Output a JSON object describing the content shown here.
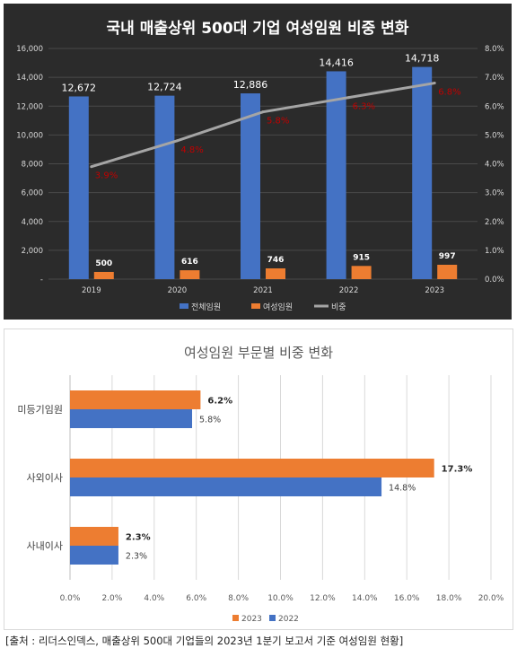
{
  "source_note": "[출처 : 리더스인덱스, 매출상위 500대 기업들의 2023년 1분기 보고서 기준 여성임원 현황]",
  "chart_data": [
    {
      "type": "bar",
      "title": "국내 매출상위 500대 기업 여성임원 비중 변화",
      "background": "#2b2b2b",
      "categories": [
        "2019",
        "2020",
        "2021",
        "2022",
        "2023"
      ],
      "series": [
        {
          "name": "전체임원",
          "kind": "bar",
          "axis": "left",
          "color": "#4472c4",
          "values": [
            12672,
            12724,
            12886,
            14416,
            14718
          ],
          "labels": [
            "12,672",
            "12,724",
            "12,886",
            "14,416",
            "14,718"
          ]
        },
        {
          "name": "여성임원",
          "kind": "bar",
          "axis": "left",
          "color": "#ed7d31",
          "values": [
            500,
            616,
            746,
            915,
            997
          ],
          "labels": [
            "500",
            "616",
            "746",
            "915",
            "997"
          ]
        },
        {
          "name": "비중",
          "kind": "line",
          "axis": "right",
          "color": "#a5a5a5",
          "values": [
            3.9,
            4.8,
            5.8,
            6.3,
            6.8
          ],
          "labels": [
            "3.9%",
            "4.8%",
            "5.8%",
            "6.3%",
            "6.8%"
          ],
          "label_color": "#c00000"
        }
      ],
      "y_left": {
        "ticks": [
          "-",
          "2,000",
          "4,000",
          "6,000",
          "8,000",
          "10,000",
          "12,000",
          "14,000",
          "16,000"
        ],
        "range": [
          0,
          16000
        ]
      },
      "y_right": {
        "ticks": [
          "0.0%",
          "1.0%",
          "2.0%",
          "3.0%",
          "4.0%",
          "5.0%",
          "6.0%",
          "7.0%",
          "8.0%"
        ],
        "range": [
          0,
          8
        ]
      },
      "grid": true,
      "legend_position": "bottom"
    },
    {
      "type": "bar",
      "orientation": "horizontal",
      "title": "여성임원 부문별 비중 변화",
      "categories": [
        "미등기임원",
        "사외이사",
        "사내이사"
      ],
      "series": [
        {
          "name": "2023",
          "color": "#ed7d31",
          "values": [
            6.2,
            17.3,
            2.3
          ],
          "labels": [
            "6.2%",
            "17.3%",
            "2.3%"
          ]
        },
        {
          "name": "2022",
          "color": "#4472c4",
          "values": [
            5.8,
            14.8,
            2.3
          ],
          "labels": [
            "5.8%",
            "14.8%",
            "2.3%"
          ]
        }
      ],
      "x_ticks": [
        "0.0%",
        "2.0%",
        "4.0%",
        "6.0%",
        "8.0%",
        "10.0%",
        "12.0%",
        "14.0%",
        "16.0%",
        "18.0%",
        "20.0%"
      ],
      "xlim": [
        0,
        20
      ],
      "grid": true,
      "legend_position": "bottom"
    }
  ]
}
